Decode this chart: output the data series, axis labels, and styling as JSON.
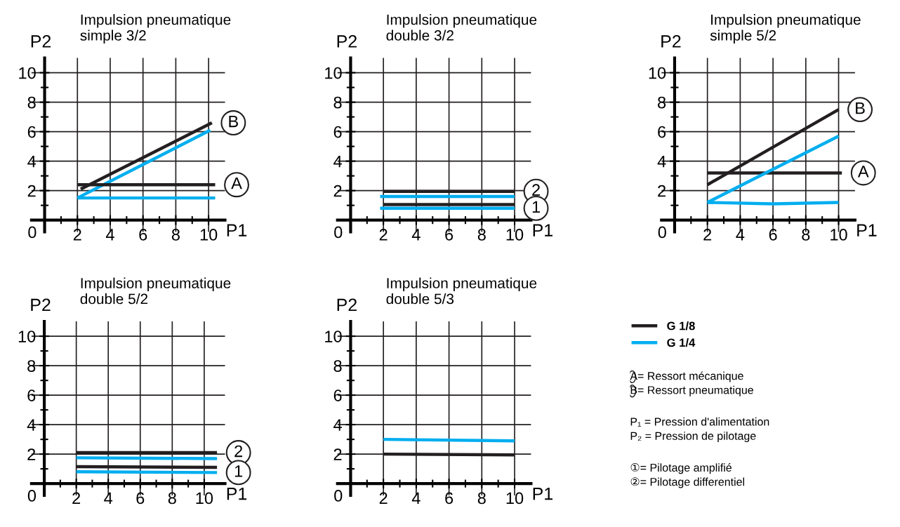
{
  "chart_data": [
    {
      "type": "line",
      "title": "Impulsion pneumatique\nsimple 3/2",
      "xlabel": "P1",
      "ylabel": "P2",
      "xlim": [
        -0.8,
        11
      ],
      "ylim": [
        -0.8,
        11
      ],
      "xticks": [
        {
          "value": 1,
          "label": null
        },
        2,
        {
          "value": 3,
          "label": null
        },
        4,
        {
          "value": 5,
          "label": null
        },
        6,
        {
          "value": 7,
          "label": null
        },
        8,
        {
          "value": 9,
          "label": null
        },
        10
      ],
      "yticks": [
        0,
        {
          "value": 1,
          "label": null
        },
        2,
        {
          "value": 3,
          "label": null
        },
        4,
        {
          "value": 5,
          "label": null
        },
        6,
        {
          "value": 7,
          "label": null
        },
        8,
        {
          "value": 9,
          "label": null
        },
        10
      ],
      "grid": true,
      "legend": "right",
      "series": [
        {
          "name": "G 1/8",
          "color": "#231f20",
          "x": [
            2.2,
            10.2
          ],
          "values": [
            2.1,
            6.6
          ]
        },
        {
          "name": "G 1/4",
          "color": "#00aeef",
          "x": [
            2,
            10.1
          ],
          "values": [
            1.5,
            6.1
          ]
        },
        {
          "color": "#231f20",
          "x": [
            2,
            10.4
          ],
          "values": [
            2.4,
            2.4
          ]
        },
        {
          "color": "#00aeef",
          "x": [
            2,
            10.4
          ],
          "values": [
            1.5,
            1.5
          ]
        }
      ],
      "annotations": [
        {
          "text": "B",
          "x": 10.2,
          "y": 6.6
        },
        {
          "text": "A",
          "x": 10.4,
          "y": 2.4
        }
      ]
    },
    {
      "type": "line",
      "title": "Impulsion pneumatique\ndouble 3/2",
      "xlabel": "P1",
      "ylabel": "P2",
      "xlim": [
        -0.8,
        11
      ],
      "ylim": [
        -0.8,
        11
      ],
      "xticks": [
        {
          "value": 1,
          "label": null
        },
        2,
        {
          "value": 3,
          "label": null
        },
        4,
        {
          "value": 5,
          "label": null
        },
        6,
        {
          "value": 7,
          "label": null
        },
        8,
        {
          "value": 9,
          "label": null
        },
        10
      ],
      "yticks": [
        0,
        {
          "value": 1,
          "label": null
        },
        2,
        {
          "value": 3,
          "label": null
        },
        4,
        {
          "value": 5,
          "label": null
        },
        6,
        {
          "value": 7,
          "label": null
        },
        8,
        {
          "value": 9,
          "label": null
        },
        10
      ],
      "grid": true,
      "series": [
        {
          "color": "#231f20",
          "x": [
            2,
            10
          ],
          "values": [
            1.95,
            1.95
          ]
        },
        {
          "color": "#00aeef",
          "x": [
            1.8,
            10
          ],
          "values": [
            1.6,
            1.6
          ]
        },
        {
          "color": "#231f20",
          "x": [
            2,
            10
          ],
          "values": [
            1.05,
            1.05
          ]
        },
        {
          "color": "#00aeef",
          "x": [
            1.8,
            10
          ],
          "values": [
            0.8,
            0.8
          ]
        }
      ],
      "annotations": [
        {
          "text": "2",
          "x": 10,
          "y": 1.95
        },
        {
          "text": "1",
          "x": 10,
          "y": 0.8
        }
      ]
    },
    {
      "type": "line",
      "title": "Impulsion pneumatique\nsimple 5/2",
      "xlabel": "P1",
      "ylabel": "P2",
      "xlim": [
        -0.8,
        11
      ],
      "ylim": [
        -0.8,
        11
      ],
      "xticks": [
        {
          "value": 1,
          "label": null
        },
        2,
        {
          "value": 3,
          "label": null
        },
        4,
        {
          "value": 5,
          "label": null
        },
        6,
        {
          "value": 7,
          "label": null
        },
        8,
        {
          "value": 9,
          "label": null
        },
        10
      ],
      "yticks": [
        0,
        {
          "value": 1,
          "label": null
        },
        2,
        {
          "value": 3,
          "label": null
        },
        4,
        {
          "value": 5,
          "label": null
        },
        6,
        {
          "value": 7,
          "label": null
        },
        8,
        {
          "value": 9,
          "label": null
        },
        10
      ],
      "grid": true,
      "series": [
        {
          "color": "#231f20",
          "x": [
            2,
            10
          ],
          "values": [
            2.4,
            7.5
          ]
        },
        {
          "color": "#231f20",
          "x": [
            2,
            10.2
          ],
          "values": [
            3.2,
            3.2
          ]
        },
        {
          "color": "#00aeef",
          "x": [
            2,
            10
          ],
          "values": [
            1.2,
            5.7
          ]
        },
        {
          "color": "#00aeef",
          "x": [
            2,
            6,
            10
          ],
          "values": [
            1.2,
            1.1,
            1.2
          ]
        }
      ],
      "annotations": [
        {
          "text": "B",
          "x": 10,
          "y": 7.5
        },
        {
          "text": "A",
          "x": 10.2,
          "y": 3.2
        }
      ]
    },
    {
      "type": "line",
      "title": "Impulsion pneumatique\ndouble 5/2",
      "xlabel": "P1",
      "ylabel": "P2",
      "xlim": [
        -0.8,
        11.3
      ],
      "ylim": [
        -0.8,
        11
      ],
      "xticks": [
        {
          "value": 1,
          "label": null
        },
        2,
        {
          "value": 3,
          "label": null
        },
        4,
        {
          "value": 5,
          "label": null
        },
        6,
        {
          "value": 7,
          "label": null
        },
        8,
        {
          "value": 9,
          "label": null
        },
        10
      ],
      "yticks": [
        0,
        {
          "value": 1,
          "label": null
        },
        2,
        {
          "value": 3,
          "label": null
        },
        4,
        {
          "value": 5,
          "label": null
        },
        6,
        {
          "value": 7,
          "label": null
        },
        8,
        {
          "value": 9,
          "label": null
        },
        10
      ],
      "grid": true,
      "series": [
        {
          "color": "#231f20",
          "x": [
            2,
            10.8
          ],
          "values": [
            2.1,
            2.1
          ]
        },
        {
          "color": "#00aeef",
          "x": [
            2,
            10.8
          ],
          "values": [
            1.75,
            1.7
          ]
        },
        {
          "color": "#231f20",
          "x": [
            2,
            10.8
          ],
          "values": [
            1.15,
            1.1
          ]
        },
        {
          "color": "#00aeef",
          "x": [
            2,
            10.8
          ],
          "values": [
            0.8,
            0.75
          ]
        }
      ],
      "annotations": [
        {
          "text": "2",
          "x": 10.8,
          "y": 2.1
        },
        {
          "text": "1",
          "x": 10.8,
          "y": 0.75
        }
      ]
    },
    {
      "type": "line",
      "title": "Impulsion pneumatique\ndouble 5/3",
      "xlabel": "P1",
      "ylabel": "P2",
      "xlim": [
        -0.8,
        11
      ],
      "ylim": [
        -0.8,
        11
      ],
      "xticks": [
        {
          "value": 1,
          "label": null
        },
        2,
        {
          "value": 3,
          "label": null
        },
        4,
        {
          "value": 5,
          "label": null
        },
        6,
        {
          "value": 7,
          "label": null
        },
        8,
        {
          "value": 9,
          "label": null
        },
        10
      ],
      "yticks": [
        0,
        {
          "value": 1,
          "label": null
        },
        2,
        {
          "value": 3,
          "label": null
        },
        4,
        {
          "value": 5,
          "label": null
        },
        6,
        {
          "value": 7,
          "label": null
        },
        8,
        {
          "value": 9,
          "label": null
        },
        10
      ],
      "grid": true,
      "series": [
        {
          "color": "#00aeef",
          "x": [
            2,
            10
          ],
          "values": [
            3.0,
            2.9
          ]
        },
        {
          "color": "#231f20",
          "x": [
            2,
            10
          ],
          "values": [
            2.0,
            1.95
          ]
        }
      ]
    },
    {
      "type": "other",
      "annotations": [
        "A= Ressort mécanique",
        "B= Ressort pneumatique",
        "P₁ = Pression d'alimentation",
        "P₂ = Pression de pilotage",
        "①= Pilotage amplifié",
        "②= Pilotage differentiel"
      ]
    }
  ]
}
